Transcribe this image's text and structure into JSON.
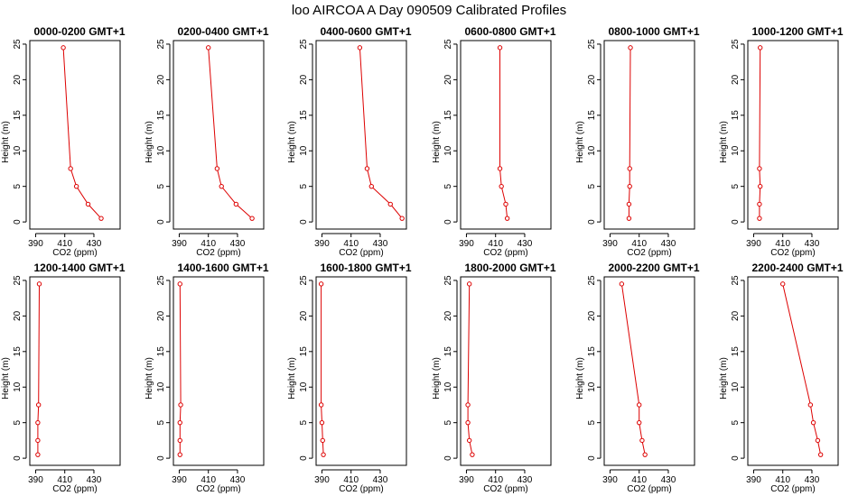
{
  "figure_title": "loo AIRCOA A  Day 090509  Calibrated Profiles",
  "chart_data": [
    {
      "type": "line",
      "title": "0000-0200 GMT+1",
      "xlabel": "CO2 (ppm)",
      "ylabel": "Height (m)",
      "xlim": [
        386,
        448
      ],
      "ylim": [
        -1,
        25.5
      ],
      "xticks": [
        390,
        410,
        430
      ],
      "yticks": [
        0,
        5,
        10,
        15,
        20,
        25
      ],
      "color": "#dd0000",
      "x": [
        435,
        426,
        418,
        414,
        409
      ],
      "y": [
        0.5,
        2.5,
        5,
        7.5,
        24.5
      ]
    },
    {
      "type": "line",
      "title": "0200-0400 GMT+1",
      "xlabel": "CO2 (ppm)",
      "ylabel": "Height (m)",
      "xlim": [
        386,
        448
      ],
      "ylim": [
        -1,
        25.5
      ],
      "xticks": [
        390,
        410,
        430
      ],
      "yticks": [
        0,
        5,
        10,
        15,
        20,
        25
      ],
      "color": "#dd0000",
      "x": [
        440,
        429,
        419,
        416,
        410
      ],
      "y": [
        0.5,
        2.5,
        5,
        7.5,
        24.5
      ]
    },
    {
      "type": "line",
      "title": "0400-0600 GMT+1",
      "xlabel": "CO2 (ppm)",
      "ylabel": "Height (m)",
      "xlim": [
        386,
        448
      ],
      "ylim": [
        -1,
        25.5
      ],
      "xticks": [
        390,
        410,
        430
      ],
      "yticks": [
        0,
        5,
        10,
        15,
        20,
        25
      ],
      "color": "#dd0000",
      "x": [
        445,
        437,
        424,
        421,
        416
      ],
      "y": [
        0.5,
        2.5,
        5,
        7.5,
        24.5
      ]
    },
    {
      "type": "line",
      "title": "0600-0800 GMT+1",
      "xlabel": "CO2 (ppm)",
      "ylabel": "Height (m)",
      "xlim": [
        386,
        448
      ],
      "ylim": [
        -1,
        25.5
      ],
      "xticks": [
        390,
        410,
        430
      ],
      "yticks": [
        0,
        5,
        10,
        15,
        20,
        25
      ],
      "color": "#dd0000",
      "x": [
        418,
        417,
        414,
        413,
        413
      ],
      "y": [
        0.5,
        2.5,
        5,
        7.5,
        24.5
      ]
    },
    {
      "type": "line",
      "title": "0800-1000 GMT+1",
      "xlabel": "CO2 (ppm)",
      "ylabel": "Height (m)",
      "xlim": [
        386,
        448
      ],
      "ylim": [
        -1,
        25.5
      ],
      "xticks": [
        390,
        410,
        430
      ],
      "yticks": [
        0,
        5,
        10,
        15,
        20,
        25
      ],
      "color": "#dd0000",
      "x": [
        403,
        403,
        403.5,
        403.5,
        404
      ],
      "y": [
        0.5,
        2.5,
        5,
        7.5,
        24.5
      ]
    },
    {
      "type": "line",
      "title": "1000-1200 GMT+1",
      "xlabel": "CO2 (ppm)",
      "ylabel": "Height (m)",
      "xlim": [
        386,
        448
      ],
      "ylim": [
        -1,
        25.5
      ],
      "xticks": [
        390,
        410,
        430
      ],
      "yticks": [
        0,
        5,
        10,
        15,
        20,
        25
      ],
      "color": "#dd0000",
      "x": [
        394,
        394,
        394.5,
        394,
        394.5
      ],
      "y": [
        0.5,
        2.5,
        5,
        7.5,
        24.5
      ]
    },
    {
      "type": "line",
      "title": "1200-1400 GMT+1",
      "xlabel": "CO2 (ppm)",
      "ylabel": "Height (m)",
      "xlim": [
        386,
        448
      ],
      "ylim": [
        -1,
        25.5
      ],
      "xticks": [
        390,
        410,
        430
      ],
      "yticks": [
        0,
        5,
        10,
        15,
        20,
        25
      ],
      "color": "#dd0000",
      "x": [
        391.5,
        391.5,
        391.5,
        392,
        392.5
      ],
      "y": [
        0.5,
        2.5,
        5,
        7.5,
        24.5
      ]
    },
    {
      "type": "line",
      "title": "1400-1600 GMT+1",
      "xlabel": "CO2 (ppm)",
      "ylabel": "Height (m)",
      "xlim": [
        386,
        448
      ],
      "ylim": [
        -1,
        25.5
      ],
      "xticks": [
        390,
        410,
        430
      ],
      "yticks": [
        0,
        5,
        10,
        15,
        20,
        25
      ],
      "color": "#dd0000",
      "x": [
        390.5,
        390.5,
        390.5,
        391,
        390.5
      ],
      "y": [
        0.5,
        2.5,
        5,
        7.5,
        24.5
      ]
    },
    {
      "type": "line",
      "title": "1600-1800 GMT+1",
      "xlabel": "CO2 (ppm)",
      "ylabel": "Height (m)",
      "xlim": [
        386,
        448
      ],
      "ylim": [
        -1,
        25.5
      ],
      "xticks": [
        390,
        410,
        430
      ],
      "yticks": [
        0,
        5,
        10,
        15,
        20,
        25
      ],
      "color": "#dd0000",
      "x": [
        391,
        390.5,
        390,
        389.5,
        389.5
      ],
      "y": [
        0.5,
        2.5,
        5,
        7.5,
        24.5
      ]
    },
    {
      "type": "line",
      "title": "1800-2000 GMT+1",
      "xlabel": "CO2 (ppm)",
      "ylabel": "Height (m)",
      "xlim": [
        386,
        448
      ],
      "ylim": [
        -1,
        25.5
      ],
      "xticks": [
        390,
        410,
        430
      ],
      "yticks": [
        0,
        5,
        10,
        15,
        20,
        25
      ],
      "color": "#dd0000",
      "x": [
        394,
        392,
        391,
        391,
        392
      ],
      "y": [
        0.5,
        2.5,
        5,
        7.5,
        24.5
      ]
    },
    {
      "type": "line",
      "title": "2000-2200 GMT+1",
      "xlabel": "CO2 (ppm)",
      "ylabel": "Height (m)",
      "xlim": [
        386,
        448
      ],
      "ylim": [
        -1,
        25.5
      ],
      "xticks": [
        390,
        410,
        430
      ],
      "yticks": [
        0,
        5,
        10,
        15,
        20,
        25
      ],
      "color": "#dd0000",
      "x": [
        414,
        412,
        410,
        410,
        398
      ],
      "y": [
        0.5,
        2.5,
        5,
        7.5,
        24.5
      ]
    },
    {
      "type": "line",
      "title": "2200-2400 GMT+1",
      "xlabel": "CO2 (ppm)",
      "ylabel": "Height (m)",
      "xlim": [
        386,
        448
      ],
      "ylim": [
        -1,
        25.5
      ],
      "xticks": [
        390,
        410,
        430
      ],
      "yticks": [
        0,
        5,
        10,
        15,
        20,
        25
      ],
      "color": "#dd0000",
      "x": [
        436,
        434,
        431,
        429,
        410
      ],
      "y": [
        0.5,
        2.5,
        5,
        7.5,
        24.5
      ]
    }
  ]
}
